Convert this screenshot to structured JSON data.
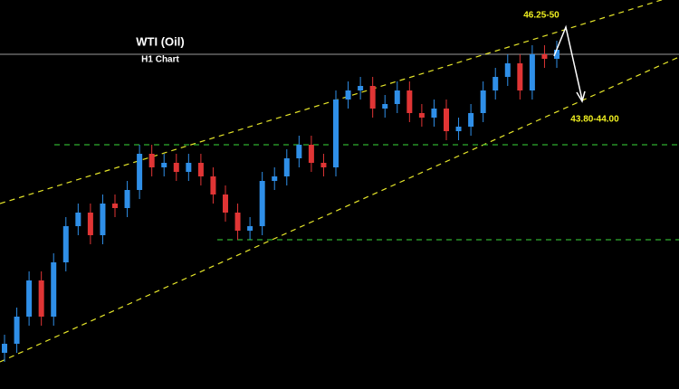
{
  "chart_data": {
    "type": "candlestick",
    "title": "WTI (Oil)",
    "subtitle": "H1 Chart",
    "annotations": [
      "46.25-50",
      "43.80-44.00"
    ],
    "categories": [
      null,
      null,
      null,
      null,
      null,
      null,
      null,
      null,
      null,
      null,
      null,
      null,
      null,
      null,
      null,
      null,
      null,
      null,
      null,
      null,
      null,
      null,
      null,
      null,
      null,
      null,
      null,
      null,
      null,
      null,
      null,
      null,
      null,
      null,
      null,
      null,
      null,
      null,
      null,
      null,
      null,
      null,
      null,
      null,
      null,
      null
    ],
    "open": [
      36.2,
      36.5,
      37.4,
      38.6,
      37.4,
      39.2,
      40.4,
      40.85,
      40.1,
      41.15,
      41.0,
      41.6,
      42.8,
      42.35,
      42.5,
      42.2,
      42.5,
      42.05,
      41.45,
      40.85,
      40.25,
      40.4,
      41.9,
      42.05,
      42.65,
      43.1,
      42.5,
      42.35,
      44.6,
      44.9,
      45.05,
      44.3,
      44.45,
      44.9,
      44.15,
      44.0,
      44.3,
      43.55,
      43.7,
      44.15,
      44.9,
      45.35,
      45.8,
      44.9,
      46.1,
      45.95
    ],
    "high": [
      36.8,
      37.7,
      38.9,
      38.9,
      39.5,
      40.7,
      41.15,
      41.15,
      41.45,
      41.45,
      41.9,
      43.1,
      43.1,
      42.8,
      42.8,
      42.8,
      42.8,
      42.35,
      41.75,
      41.15,
      40.7,
      42.2,
      42.35,
      42.95,
      43.4,
      43.4,
      42.8,
      44.9,
      45.2,
      45.35,
      45.35,
      44.75,
      45.2,
      45.2,
      44.45,
      44.6,
      44.6,
      44.0,
      44.45,
      45.2,
      45.65,
      46.1,
      46.1,
      46.4,
      46.4,
      46.55
    ],
    "low": [
      35.9,
      36.2,
      37.1,
      37.1,
      37.1,
      38.9,
      40.1,
      39.8,
      39.8,
      40.7,
      40.7,
      41.3,
      42.05,
      42.05,
      41.9,
      41.9,
      41.75,
      41.15,
      40.55,
      39.95,
      39.95,
      40.1,
      41.6,
      41.75,
      42.35,
      42.2,
      42.05,
      42.05,
      44.3,
      44.6,
      44.0,
      44.0,
      44.15,
      43.85,
      43.7,
      43.7,
      43.25,
      43.25,
      43.4,
      43.85,
      44.6,
      45.05,
      44.6,
      44.6,
      45.65,
      45.65
    ],
    "close": [
      36.5,
      37.4,
      38.6,
      37.4,
      39.2,
      40.4,
      40.85,
      40.1,
      41.15,
      41.0,
      41.6,
      42.8,
      42.35,
      42.5,
      42.2,
      42.5,
      42.05,
      41.45,
      40.85,
      40.25,
      40.4,
      41.9,
      42.05,
      42.65,
      43.1,
      42.5,
      42.35,
      44.6,
      44.9,
      45.05,
      44.3,
      44.45,
      44.9,
      44.15,
      44.0,
      44.3,
      43.55,
      43.7,
      44.15,
      44.9,
      45.35,
      45.8,
      44.9,
      46.1,
      45.95,
      46.25
    ],
    "up_color": "#2f8fe8",
    "down_color": "#e03535",
    "ylim": [
      35,
      47.9
    ]
  }
}
